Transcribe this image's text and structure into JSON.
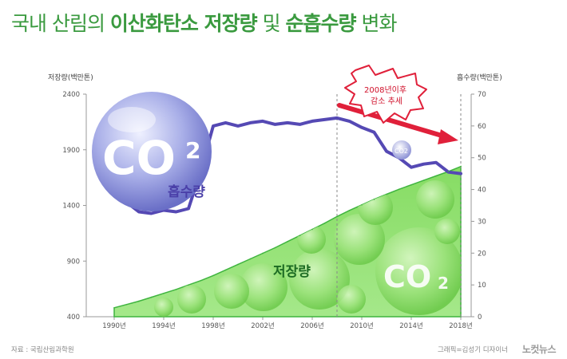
{
  "title": {
    "part1": "국내 산림의 ",
    "part2": "이산화탄소 저장량",
    "part3": " 및 ",
    "part4": "순흡수량",
    "part5": " 변화"
  },
  "colors": {
    "title_green": "#3a9a3f",
    "storage_fill": "#7fd65e",
    "absorption_line": "#5549b4",
    "trend_arrow": "#e0203a"
  },
  "chart_data": {
    "type": "line",
    "x": [
      1990,
      1991,
      1992,
      1993,
      1994,
      1995,
      1996,
      1997,
      1998,
      1999,
      2000,
      2001,
      2002,
      2003,
      2004,
      2005,
      2006,
      2007,
      2008,
      2009,
      2010,
      2011,
      2012,
      2013,
      2014,
      2015,
      2016,
      2017,
      2018
    ],
    "x_tick_labels": [
      "1990년",
      "1994년",
      "1998년",
      "2002년",
      "2006년",
      "2010년",
      "2014년",
      "2018년"
    ],
    "x_tick_values": [
      1990,
      1994,
      1998,
      2002,
      2006,
      2010,
      2014,
      2018
    ],
    "left_axis": {
      "label": "저장량(백만톤)",
      "ylim": [
        400,
        2400
      ],
      "ticks": [
        "2400",
        "1900",
        "1400",
        "900",
        "400"
      ]
    },
    "right_axis": {
      "label": "흡수량(백만톤)",
      "ylim": [
        0,
        70
      ],
      "ticks": [
        "70",
        "60",
        "50",
        "40",
        "30",
        "20",
        "10",
        "0"
      ]
    },
    "series": [
      {
        "name": "저장량",
        "axis": "left",
        "style": "area",
        "values": [
          480,
          510,
          540,
          575,
          610,
          645,
          685,
          725,
          770,
          820,
          870,
          920,
          970,
          1020,
          1075,
          1130,
          1185,
          1240,
          1300,
          1355,
          1405,
          1455,
          1500,
          1545,
          1585,
          1625,
          1665,
          1705,
          1750
        ]
      },
      {
        "name": "흡수량",
        "axis": "right",
        "style": "line",
        "values": [
          38.5,
          36,
          33,
          32.5,
          33.5,
          33,
          34,
          46,
          60,
          61,
          60,
          61,
          61.5,
          60.5,
          61,
          60.5,
          61.5,
          62,
          62.5,
          61.5,
          59.5,
          58,
          52,
          50,
          47,
          48,
          48.5,
          45.5,
          45
        ]
      }
    ],
    "annotations": {
      "trend_label_line1": "2008년이후",
      "trend_label_line2": "감소 추세",
      "bubble_text": "CO2",
      "bubble_subscript": "2",
      "big_bubble_co": "CO",
      "absorption_label": "흡수량",
      "storage_label": "저장량"
    },
    "divider_year": 2008
  },
  "footer": {
    "source": "자료 : 국립산림과학원",
    "credit": "그래픽=김성기 디자이너",
    "logo": "노컷뉴스"
  }
}
